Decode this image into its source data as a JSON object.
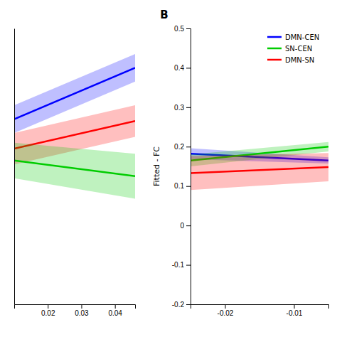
{
  "chart_data": [
    {
      "type": "line",
      "x": [
        0.01,
        0.046
      ],
      "series": [
        {
          "color": "#0000ff",
          "values": [
            0.27,
            0.4
          ],
          "ci_lo": [
            0.235,
            0.365
          ],
          "ci_hi": [
            0.305,
            0.435
          ]
        },
        {
          "color": "#ff0000",
          "values": [
            0.195,
            0.265
          ],
          "ci_lo": [
            0.155,
            0.225
          ],
          "ci_hi": [
            0.235,
            0.305
          ]
        },
        {
          "color": "#00cc00",
          "values": [
            0.165,
            0.125
          ],
          "ci_lo": [
            0.12,
            0.068
          ],
          "ci_hi": [
            0.21,
            0.182
          ]
        }
      ],
      "xlim": [
        0.01,
        0.046
      ],
      "xticks": [
        0.02,
        0.03,
        0.04
      ],
      "ylim": [
        -0.2,
        0.5
      ],
      "tick_labels": "x"
    },
    {
      "type": "line",
      "x": [
        -0.025,
        -0.005
      ],
      "series": [
        {
          "name": "DMN-CEN",
          "color": "#0000ff",
          "values": [
            0.182,
            0.165
          ],
          "ci_lo": [
            0.168,
            0.157
          ],
          "ci_hi": [
            0.196,
            0.173
          ]
        },
        {
          "name": "SN-CEN",
          "color": "#00cc00",
          "values": [
            0.165,
            0.2
          ],
          "ci_lo": [
            0.15,
            0.188
          ],
          "ci_hi": [
            0.18,
            0.212
          ]
        },
        {
          "name": "DMN-SN",
          "color": "#ff0000",
          "values": [
            0.133,
            0.148
          ],
          "ci_lo": [
            0.09,
            0.112
          ],
          "ci_hi": [
            0.176,
            0.184
          ]
        }
      ],
      "xlim": [
        -0.025,
        -0.005
      ],
      "xticks": [
        -0.02,
        -0.01
      ],
      "ylim": [
        -0.2,
        0.5
      ],
      "yticks": [
        -0.2,
        -0.1,
        0,
        0.1,
        0.2,
        0.3,
        0.4,
        0.5
      ],
      "y_label": "Fitted - FC",
      "annotations": [
        {
          "text": "B"
        }
      ],
      "legend": "upper right"
    }
  ]
}
